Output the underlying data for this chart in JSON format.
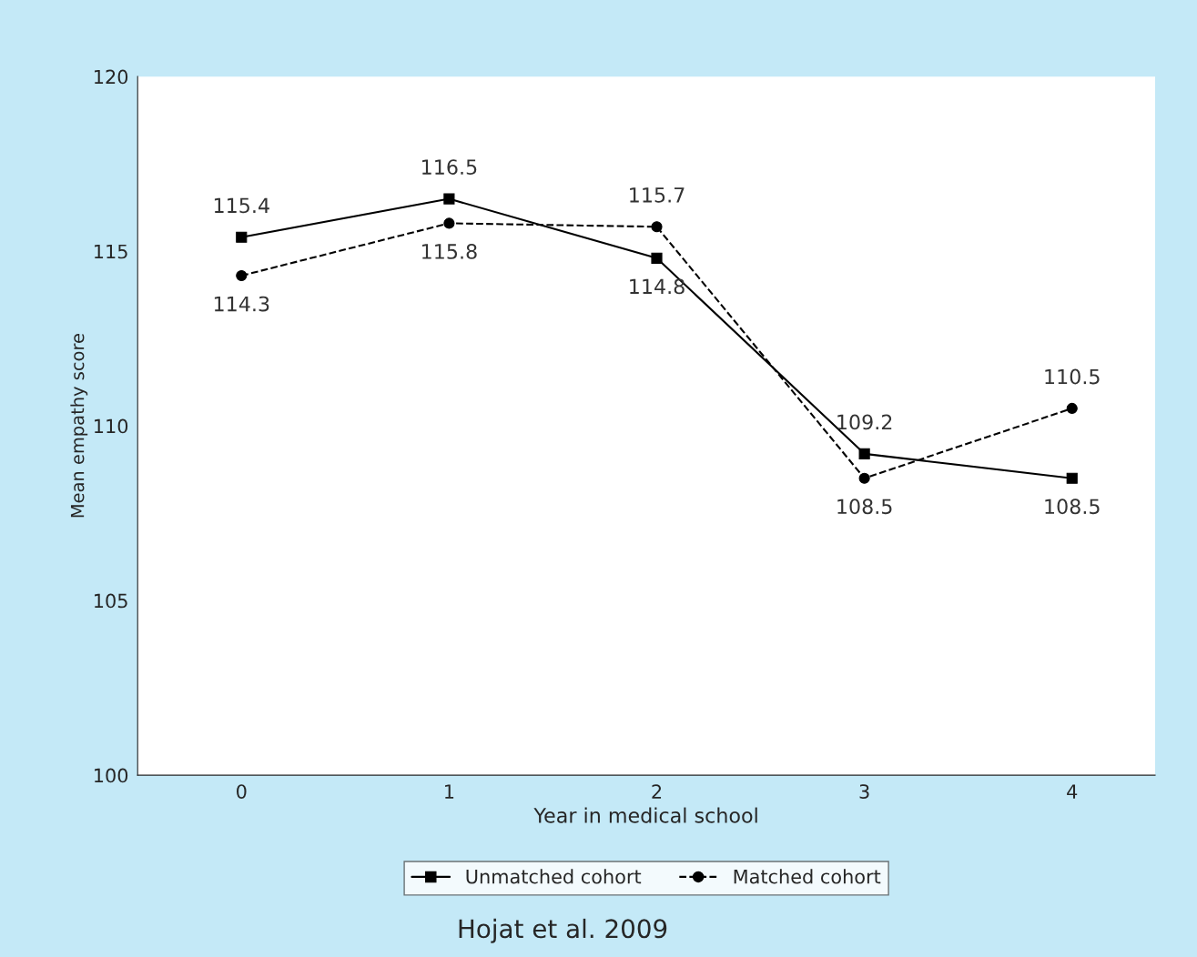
{
  "chart_data": {
    "type": "line",
    "xlabel": "Year in medical school",
    "ylabel": "Mean empathy score",
    "x": [
      0,
      1,
      2,
      3,
      4
    ],
    "series": [
      {
        "name": "Unmatched cohort",
        "color": "#000000",
        "values": [
          115.4,
          116.5,
          114.8,
          109.2,
          108.5
        ],
        "marker": "square",
        "line_style": "solid"
      },
      {
        "name": "Matched cohort",
        "color": "#000000",
        "values": [
          114.3,
          115.8,
          115.7,
          108.5,
          110.5
        ],
        "marker": "circle",
        "line_style": "dashed"
      }
    ],
    "xlim": [
      -0.5,
      4.4
    ],
    "xticks": [
      0,
      1,
      2,
      3,
      4
    ],
    "ylim": [
      100,
      120
    ],
    "yticks": [
      100,
      105,
      110,
      115,
      120
    ],
    "grid": false,
    "legend": "bottom",
    "data_labels": true,
    "annotations": [
      "Hojat et al. 2009"
    ]
  }
}
